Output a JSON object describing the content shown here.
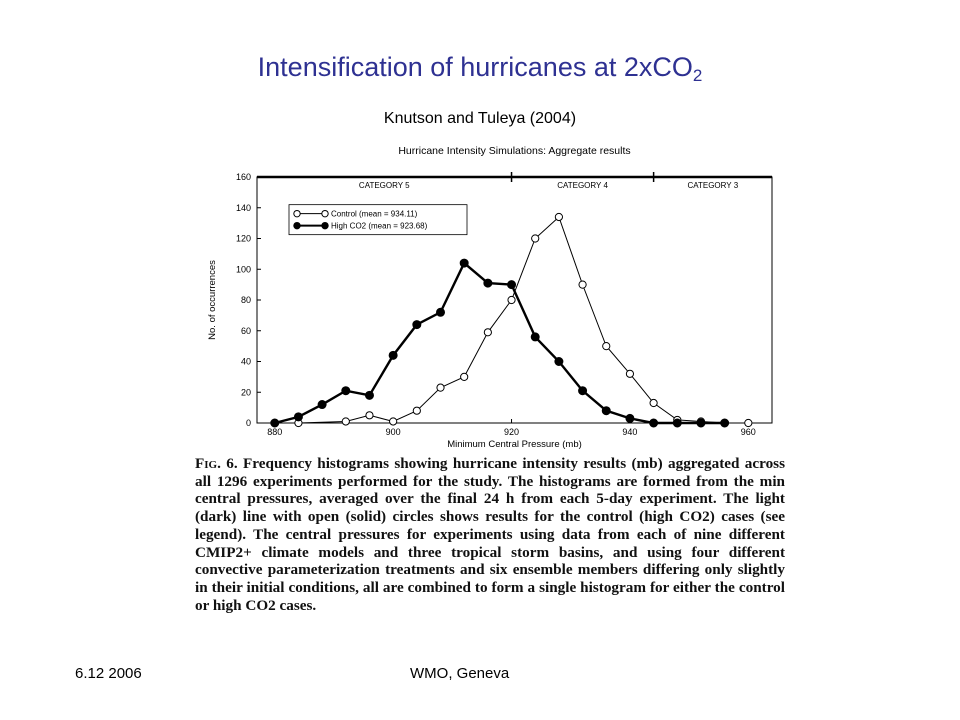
{
  "slide": {
    "title_main": "Intensification of hurricanes at 2xCO",
    "title_sub": "2",
    "subtitle": "Knutson and Tuleya (2004)",
    "footer_left": "6.12 2006",
    "footer_center": "WMO, Geneva"
  },
  "chart_data": {
    "type": "line",
    "title": "Hurricane Intensity Simulations:  Aggregate results",
    "xlabel": "Minimum Central Pressure (mb)",
    "ylabel": "No. of occurrences",
    "xlim": [
      877,
      964
    ],
    "ylim": [
      0,
      160
    ],
    "xticks": [
      880,
      900,
      920,
      940,
      960
    ],
    "yticks": [
      0,
      20,
      40,
      60,
      80,
      100,
      120,
      140,
      160
    ],
    "categories_band": [
      {
        "label": "CATEGORY 5",
        "from": 877,
        "to": 920
      },
      {
        "label": "CATEGORY 4",
        "from": 920,
        "to": 944
      },
      {
        "label": "CATEGORY 3",
        "from": 944,
        "to": 964
      }
    ],
    "legend_position": "top-left",
    "series": [
      {
        "name": "Control (mean = 934.11)",
        "marker": "open-circle",
        "x": [
          880,
          884,
          892,
          896,
          900,
          904,
          908,
          912,
          916,
          920,
          924,
          928,
          932,
          936,
          940,
          944,
          948,
          952,
          956,
          960
        ],
        "y": [
          0,
          0,
          1,
          5,
          1,
          8,
          23,
          30,
          59,
          80,
          120,
          134,
          90,
          50,
          32,
          13,
          2,
          1,
          0,
          0
        ]
      },
      {
        "name": "High CO2 (mean = 923.68)",
        "marker": "filled-circle",
        "x": [
          880,
          884,
          888,
          892,
          896,
          900,
          904,
          908,
          912,
          916,
          920,
          924,
          928,
          932,
          936,
          940,
          944,
          948,
          952,
          956
        ],
        "y": [
          0,
          4,
          12,
          21,
          18,
          44,
          64,
          72,
          104,
          91,
          90,
          56,
          40,
          21,
          8,
          3,
          0,
          0,
          0,
          0
        ]
      }
    ]
  },
  "caption": {
    "fig_label": "Fig. 6.",
    "text": "Frequency histograms showing hurricane intensity results (mb) aggregated across all 1296 experiments performed for the study. The histograms are formed from the min central pressures, averaged over the final 24 h from each 5-day experiment. The light (dark) line with open (solid) circles shows results for the control (high CO2) cases (see legend). The central pressures for experiments using data from each of nine different CMIP2+ climate models and three tropical storm basins, and using four different convective parameterization treatments and six ensemble members differing only slightly in their initial conditions, all are combined to form a single histogram for either the control or high CO2 cases."
  },
  "colors": {
    "title": "#2e3192",
    "axis": "#000000",
    "text": "#000000"
  }
}
